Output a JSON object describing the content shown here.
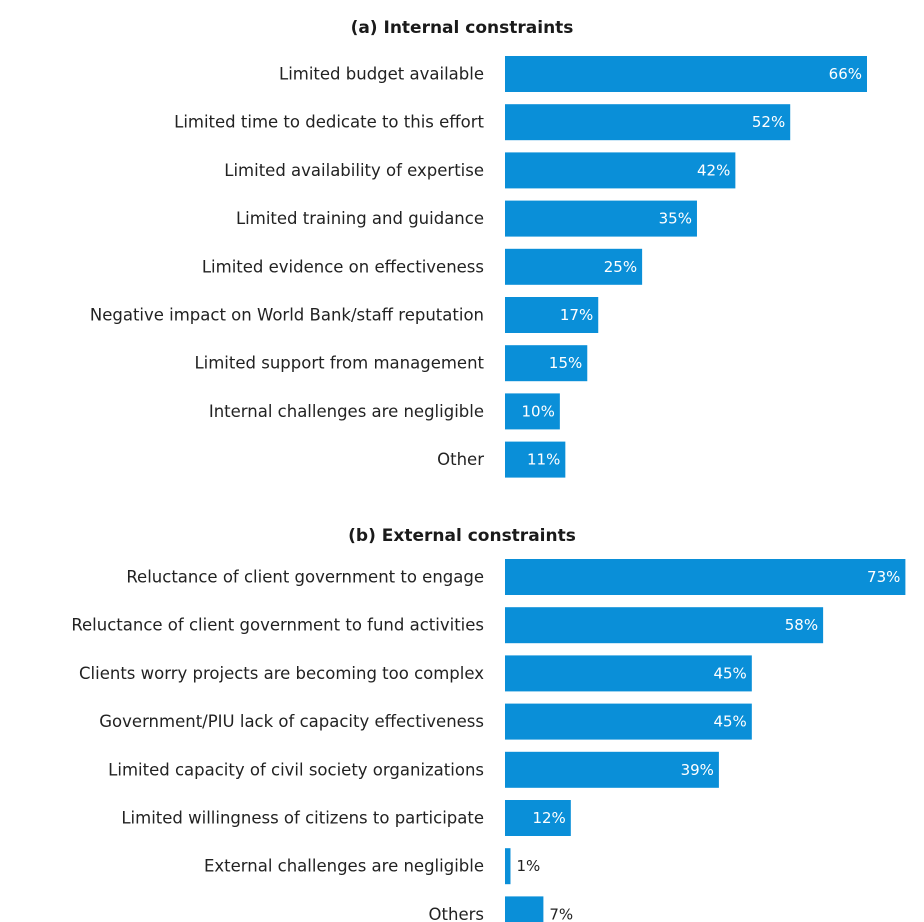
{
  "accent": "#0a8fd8",
  "chart_data": [
    {
      "type": "bar",
      "orientation": "horizontal",
      "title": "(a) Internal constraints",
      "categories": [
        "Limited budget available",
        "Limited time to dedicate to this effort",
        "Limited availability of expertise",
        "Limited training and guidance",
        "Limited evidence on effectiveness",
        "Negative impact on World Bank/staff reputation",
        "Limited support from management",
        "Internal challenges are negligible",
        "Other"
      ],
      "values": [
        66,
        52,
        42,
        35,
        25,
        17,
        15,
        10,
        11
      ],
      "labels": [
        "66%",
        "52%",
        "42%",
        "35%",
        "25%",
        "17%",
        "15%",
        "10%",
        "11%"
      ],
      "unit": "%",
      "xlim": [
        0,
        75
      ],
      "grid": false,
      "legend": "none"
    },
    {
      "type": "bar",
      "orientation": "horizontal",
      "title": "(b) External constraints",
      "categories": [
        "Reluctance of client government to engage",
        "Reluctance of client government to fund activities",
        "Clients worry projects are becoming too complex",
        "Government/PIU lack of capacity effectiveness",
        "Limited capacity of civil society organizations",
        "Limited willingness of citizens to participate",
        "External challenges are negligible",
        "Others"
      ],
      "values": [
        73,
        58,
        45,
        45,
        39,
        12,
        1,
        7
      ],
      "labels": [
        "73%",
        "58%",
        "45%",
        "45%",
        "39%",
        "12%",
        "1%",
        "7%"
      ],
      "unit": "%",
      "xlim": [
        0,
        75
      ],
      "grid": false,
      "legend": "none"
    }
  ]
}
